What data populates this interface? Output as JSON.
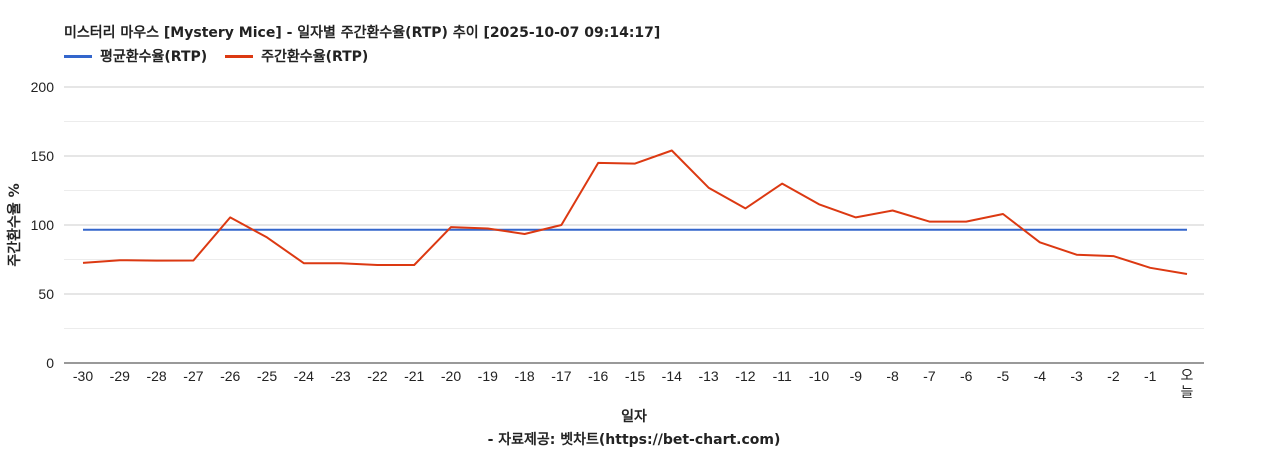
{
  "chart_data": {
    "type": "line",
    "title": "미스터리 마우스 [Mystery Mice] - 일자별 주간환수율(RTP) 추이 [2025-10-07 09:14:17]",
    "xlabel": "일자",
    "ylabel": "주간환수율 %",
    "source": "- 자료제공: 벳차트(https://bet-chart.com)",
    "categories": [
      "-30",
      "-29",
      "-28",
      "-27",
      "-26",
      "-25",
      "-24",
      "-23",
      "-22",
      "-21",
      "-20",
      "-19",
      "-18",
      "-17",
      "-16",
      "-15",
      "-14",
      "-13",
      "-12",
      "-11",
      "-10",
      "-9",
      "-8",
      "-7",
      "-6",
      "-5",
      "-4",
      "-3",
      "-2",
      "-1",
      "오늘"
    ],
    "y_ticks": [
      "0",
      "50",
      "100",
      "150",
      "200"
    ],
    "ylim": [
      0,
      200
    ],
    "grid": true,
    "legend_position": "top-left",
    "series": [
      {
        "name": "평균환수율(RTP)",
        "color": "#3366cc",
        "values": [
          96.5,
          96.5,
          96.5,
          96.5,
          96.5,
          96.5,
          96.5,
          96.5,
          96.5,
          96.5,
          96.5,
          96.5,
          96.5,
          96.5,
          96.5,
          96.5,
          96.5,
          96.5,
          96.5,
          96.5,
          96.5,
          96.5,
          96.5,
          96.5,
          96.5,
          96.5,
          96.5,
          96.5,
          96.5,
          96.5,
          96.5
        ]
      },
      {
        "name": "주간환수율(RTP)",
        "color": "#dc3912",
        "values": [
          72.5,
          74.5,
          74.2,
          74.3,
          105.5,
          91,
          72.3,
          72.3,
          71,
          71,
          98.5,
          97.5,
          93.5,
          100,
          145,
          144.5,
          154,
          127,
          112,
          130,
          115,
          105.5,
          110.5,
          102.5,
          102.5,
          108,
          87.5,
          78.5,
          77.5,
          69,
          64.5
        ]
      }
    ]
  }
}
